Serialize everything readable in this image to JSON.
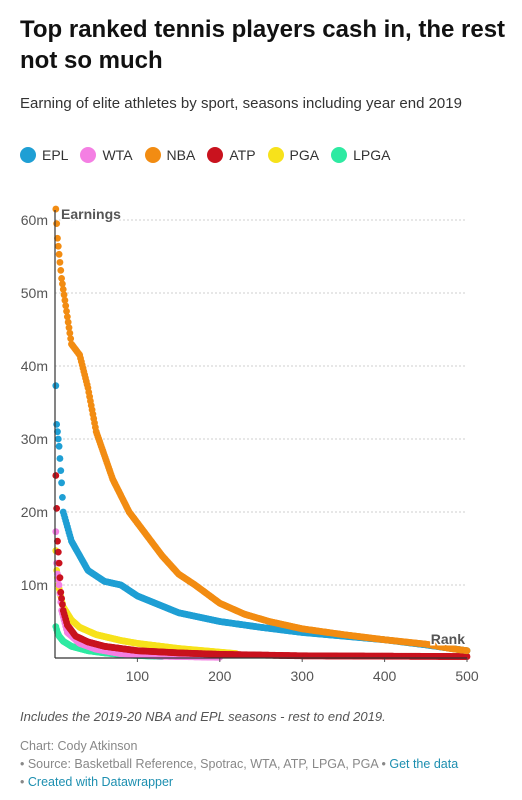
{
  "title": "Top ranked tennis players cash in, the rest not so much",
  "subtitle": "Earning of elite athletes by sport, seasons including year end 2019",
  "legend": [
    {
      "label": "EPL",
      "color": "#1f9fd4"
    },
    {
      "label": "WTA",
      "color": "#f47fe3"
    },
    {
      "label": "NBA",
      "color": "#f28c12"
    },
    {
      "label": "ATP",
      "color": "#c9121e"
    },
    {
      "label": "PGA",
      "color": "#f7e21b"
    },
    {
      "label": "LPGA",
      "color": "#2eeaa2"
    }
  ],
  "notes": "Includes the 2019-20 NBA and EPL seasons - rest to end 2019.",
  "footer": {
    "chart_by": "Chart: Cody Atkinson",
    "source_prefix": "• Source: Basketball Reference, Spotrac, WTA, ATP, LPGA, PGA •",
    "get_data": "Get the data",
    "created_prefix": "•",
    "created_with": "Created with Datawrapper"
  },
  "chart_data": {
    "type": "scatter",
    "title": "Top ranked tennis players cash in, the rest not so much",
    "subtitle": "Earning of elite athletes by sport, seasons including year end 2019",
    "xlabel": "Rank",
    "ylabel": "Earnings",
    "xlim": [
      0,
      500
    ],
    "ylim": [
      0,
      60000000
    ],
    "x_ticks": [
      100,
      200,
      300,
      400,
      500
    ],
    "y_ticks": [
      10000000,
      20000000,
      30000000,
      40000000,
      50000000,
      60000000
    ],
    "y_tick_labels": [
      "10m",
      "20m",
      "30m",
      "40m",
      "50m",
      "60m"
    ],
    "grid": "horizontal dashed",
    "legend_position": "top",
    "series": [
      {
        "name": "EPL",
        "color": "#1f9fd4",
        "curve": [
          [
            1,
            37.3
          ],
          [
            2,
            32
          ],
          [
            5,
            29
          ],
          [
            8,
            24
          ],
          [
            10,
            20
          ],
          [
            20,
            16
          ],
          [
            40,
            12
          ],
          [
            60,
            10.5
          ],
          [
            80,
            10
          ],
          [
            100,
            8.5
          ],
          [
            150,
            6.2
          ],
          [
            200,
            5
          ],
          [
            250,
            4.2
          ],
          [
            300,
            3.5
          ],
          [
            350,
            3.0
          ],
          [
            400,
            2.5
          ],
          [
            450,
            1.8
          ],
          [
            500,
            1.0
          ]
        ]
      },
      {
        "name": "WTA",
        "color": "#f47fe3",
        "curve": [
          [
            1,
            17.3
          ],
          [
            2,
            13
          ],
          [
            3,
            11.5
          ],
          [
            5,
            10
          ],
          [
            8,
            6.5
          ],
          [
            15,
            3.5
          ],
          [
            30,
            2.0
          ],
          [
            50,
            1.2
          ],
          [
            80,
            0.6
          ],
          [
            130,
            0.25
          ],
          [
            200,
            0.1
          ]
        ]
      },
      {
        "name": "NBA",
        "color": "#f28c12",
        "curve": [
          [
            1,
            61.5
          ],
          [
            3,
            57.5
          ],
          [
            8,
            52
          ],
          [
            12,
            49
          ],
          [
            20,
            43
          ],
          [
            30,
            41.5
          ],
          [
            40,
            37
          ],
          [
            50,
            31
          ],
          [
            70,
            24.5
          ],
          [
            90,
            20
          ],
          [
            110,
            17
          ],
          [
            130,
            14
          ],
          [
            150,
            11.5
          ],
          [
            170,
            10
          ],
          [
            200,
            7.5
          ],
          [
            230,
            6
          ],
          [
            260,
            5
          ],
          [
            300,
            4
          ],
          [
            350,
            3.2
          ],
          [
            400,
            2.5
          ],
          [
            450,
            1.9
          ],
          [
            480,
            1.3
          ],
          [
            500,
            1.0
          ]
        ]
      },
      {
        "name": "ATP",
        "color": "#c9121e",
        "curve": [
          [
            1,
            25
          ],
          [
            2,
            20.5
          ],
          [
            3,
            16
          ],
          [
            5,
            13
          ],
          [
            7,
            9
          ],
          [
            10,
            6.5
          ],
          [
            15,
            4.5
          ],
          [
            25,
            3
          ],
          [
            40,
            2.2
          ],
          [
            60,
            1.6
          ],
          [
            100,
            1.0
          ],
          [
            150,
            0.7
          ],
          [
            200,
            0.5
          ],
          [
            300,
            0.3
          ],
          [
            400,
            0.25
          ],
          [
            500,
            0.2
          ]
        ]
      },
      {
        "name": "PGA",
        "color": "#f7e21b",
        "curve": [
          [
            1,
            14.7
          ],
          [
            2,
            12
          ],
          [
            4,
            10
          ],
          [
            7,
            8.5
          ],
          [
            10,
            7
          ],
          [
            20,
            5.2
          ],
          [
            30,
            4.2
          ],
          [
            50,
            3.2
          ],
          [
            80,
            2.4
          ],
          [
            100,
            2.0
          ],
          [
            150,
            1.3
          ],
          [
            200,
            0.8
          ],
          [
            220,
            0.6
          ]
        ]
      },
      {
        "name": "LPGA",
        "color": "#2eeaa2",
        "curve": [
          [
            1,
            4.3
          ],
          [
            3,
            3.5
          ],
          [
            5,
            3.0
          ],
          [
            10,
            2.3
          ],
          [
            20,
            1.6
          ],
          [
            40,
            1.0
          ],
          [
            60,
            0.7
          ],
          [
            90,
            0.4
          ],
          [
            130,
            0.2
          ]
        ]
      }
    ]
  }
}
